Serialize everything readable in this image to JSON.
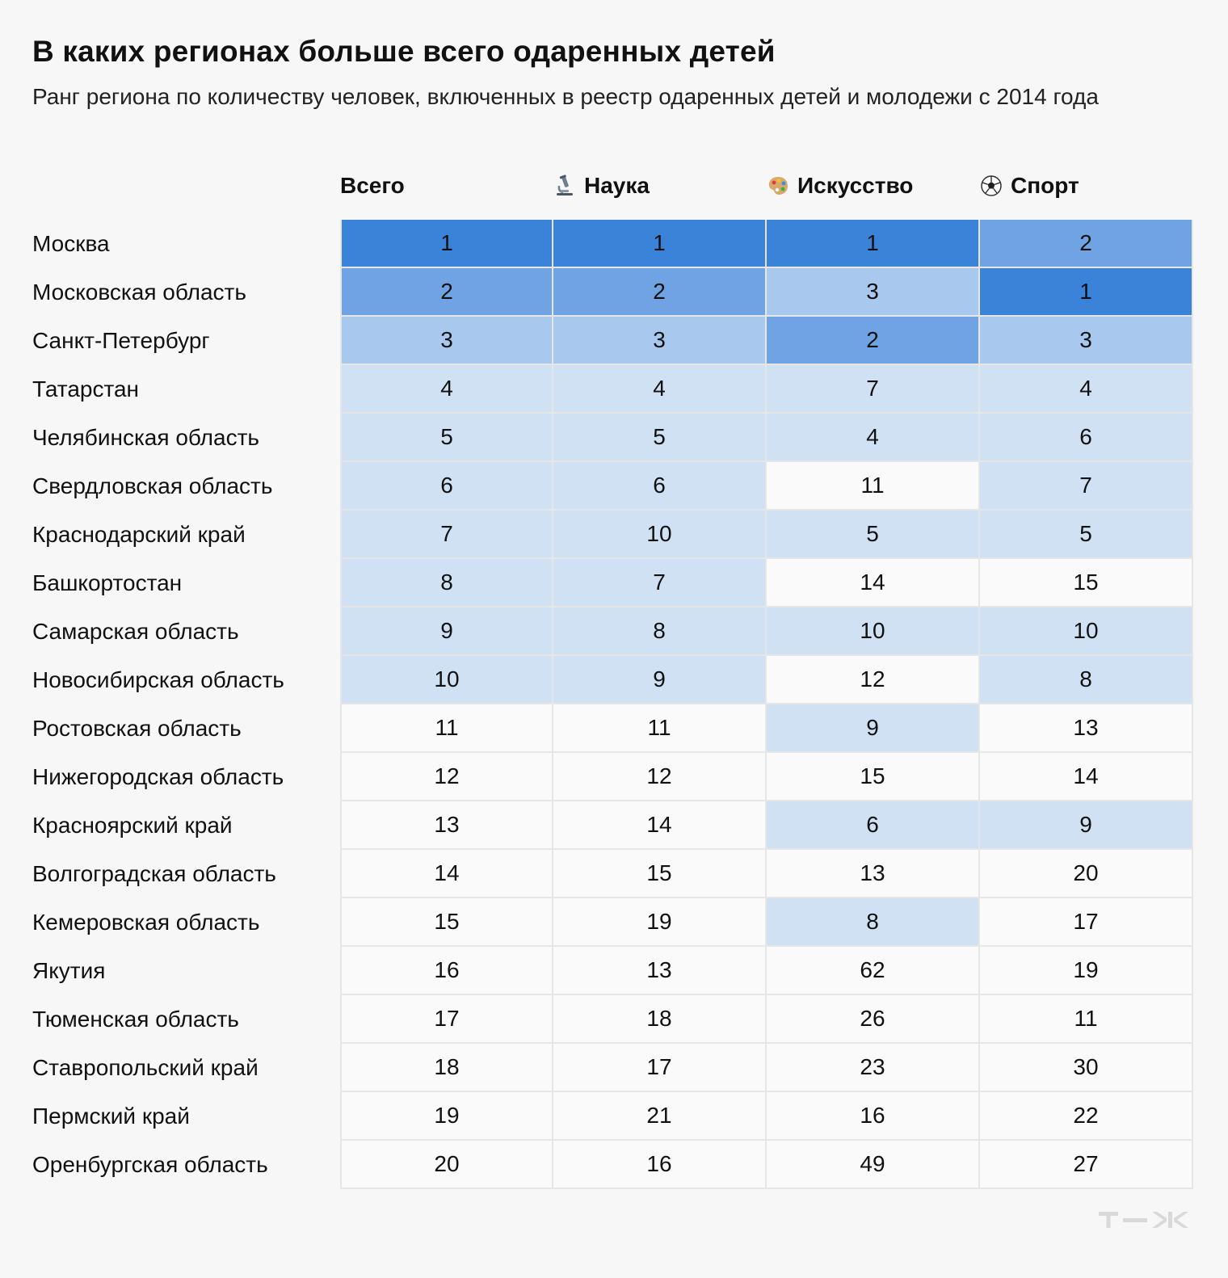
{
  "title": "В каких регионах больше всего одаренных детей",
  "subtitle": "Ранг региона по количеству человек, включенных в реестр одаренных детей и молодежи с 2014 года",
  "columns": [
    {
      "label": "Всего",
      "icon": ""
    },
    {
      "label": "Наука",
      "icon": "microscope-icon"
    },
    {
      "label": "Искусство",
      "icon": "palette-icon"
    },
    {
      "label": "Спорт",
      "icon": "soccer-ball-icon"
    }
  ],
  "colors": {
    "rank_1": "#3b82d9",
    "rank_2": "#6fa3e3",
    "rank_3": "#a8c8ee",
    "rank_4_10": "#d0e1f4",
    "rank_other": "#fafafa",
    "grid_line": "#e6e6e6",
    "logo": "#d9d9d9"
  },
  "logo_icon": "tzh-logo-icon",
  "chart_data": {
    "type": "table",
    "title": "В каких регионах больше всего одаренных детей",
    "subtitle": "Ранг региона по количеству человек, включенных в реестр одаренных детей и молодежи с 2014 года",
    "columns": [
      "Всего",
      "Наука",
      "Искусство",
      "Спорт"
    ],
    "rows": [
      {
        "region": "Москва",
        "values": [
          1,
          1,
          1,
          2
        ]
      },
      {
        "region": "Московская область",
        "values": [
          2,
          2,
          3,
          1
        ]
      },
      {
        "region": "Санкт-Петербург",
        "values": [
          3,
          3,
          2,
          3
        ]
      },
      {
        "region": "Татарстан",
        "values": [
          4,
          4,
          7,
          4
        ]
      },
      {
        "region": "Челябинская область",
        "values": [
          5,
          5,
          4,
          6
        ]
      },
      {
        "region": "Свердловская область",
        "values": [
          6,
          6,
          11,
          7
        ]
      },
      {
        "region": "Краснодарский край",
        "values": [
          7,
          10,
          5,
          5
        ]
      },
      {
        "region": "Башкортостан",
        "values": [
          8,
          7,
          14,
          15
        ]
      },
      {
        "region": "Самарская область",
        "values": [
          9,
          8,
          10,
          10
        ]
      },
      {
        "region": "Новосибирская область",
        "values": [
          10,
          9,
          12,
          8
        ]
      },
      {
        "region": "Ростовская область",
        "values": [
          11,
          11,
          9,
          13
        ]
      },
      {
        "region": "Нижегородская область",
        "values": [
          12,
          12,
          15,
          14
        ]
      },
      {
        "region": "Красноярский край",
        "values": [
          13,
          14,
          6,
          9
        ]
      },
      {
        "region": "Волгоградская область",
        "values": [
          14,
          15,
          13,
          20
        ]
      },
      {
        "region": "Кемеровская область",
        "values": [
          15,
          19,
          8,
          17
        ]
      },
      {
        "region": "Якутия",
        "values": [
          16,
          13,
          62,
          19
        ]
      },
      {
        "region": "Тюменская область",
        "values": [
          17,
          18,
          26,
          11
        ]
      },
      {
        "region": "Ставропольский край",
        "values": [
          18,
          17,
          23,
          30
        ]
      },
      {
        "region": "Пермский край",
        "values": [
          19,
          21,
          16,
          22
        ]
      },
      {
        "region": "Оренбургская область",
        "values": [
          20,
          16,
          49,
          27
        ]
      }
    ]
  }
}
